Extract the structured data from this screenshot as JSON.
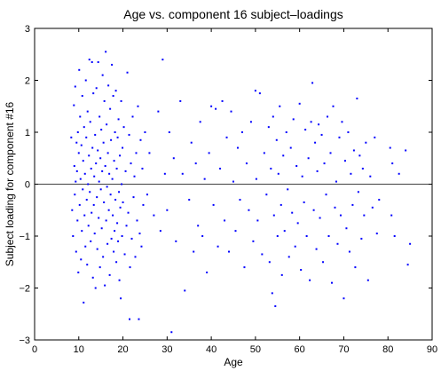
{
  "chart_data": {
    "type": "scatter",
    "title": "Age vs. component 16 subject–loadings",
    "xlabel": "Age",
    "ylabel": "Subject loading for component #16",
    "xlim": [
      0,
      90
    ],
    "ylim": [
      -3,
      3
    ],
    "xticks": [
      0,
      10,
      20,
      30,
      40,
      50,
      60,
      70,
      80,
      90
    ],
    "yticks": [
      -3,
      -2,
      -1,
      0,
      1,
      2,
      3
    ],
    "xtick_labels": [
      "0",
      "10",
      "20",
      "30",
      "40",
      "50",
      "60",
      "70",
      "80",
      "90"
    ],
    "ytick_labels": [
      "−3",
      "−2",
      "−1",
      "0",
      "1",
      "2",
      "3"
    ],
    "reference_line_y": 0,
    "grid": false,
    "colors": {
      "points": "#0000ff",
      "axes": "#000000",
      "reference_line": "#000000"
    },
    "points": [
      [
        8.3,
        0.9
      ],
      [
        8.5,
        -0.5
      ],
      [
        8.7,
        -1.0
      ],
      [
        8.9,
        1.52
      ],
      [
        9.0,
        0.35
      ],
      [
        9.1,
        -0.2
      ],
      [
        9.2,
        1.88
      ],
      [
        9.3,
        0.05
      ],
      [
        9.4,
        -1.3
      ],
      [
        9.5,
        0.8
      ],
      [
        9.6,
        0.25
      ],
      [
        9.7,
        -0.7
      ],
      [
        9.8,
        1.0
      ],
      [
        9.9,
        -1.7
      ],
      [
        10.0,
        0.6
      ],
      [
        10.1,
        2.2
      ],
      [
        10.2,
        -0.4
      ],
      [
        10.3,
        1.3
      ],
      [
        10.4,
        0.1
      ],
      [
        10.5,
        -1.45
      ],
      [
        10.6,
        0.75
      ],
      [
        10.7,
        -0.9
      ],
      [
        10.8,
        1.7
      ],
      [
        10.9,
        -0.1
      ],
      [
        11.0,
        0.45
      ],
      [
        11.1,
        -2.28
      ],
      [
        11.2,
        1.1
      ],
      [
        11.3,
        -0.6
      ],
      [
        11.4,
        0.2
      ],
      [
        11.5,
        -1.2
      ],
      [
        11.6,
        2.0
      ],
      [
        11.7,
        0.9
      ],
      [
        11.8,
        -0.3
      ],
      [
        11.9,
        -1.55
      ],
      [
        12.0,
        1.4
      ],
      [
        12.1,
        0.0
      ],
      [
        12.2,
        -0.8
      ],
      [
        12.3,
        0.55
      ],
      [
        12.4,
        2.4
      ],
      [
        12.5,
        -0.15
      ],
      [
        12.6,
        1.2
      ],
      [
        12.7,
        -1.1
      ],
      [
        12.8,
        0.3
      ],
      [
        12.9,
        -0.55
      ],
      [
        13.0,
        2.35
      ],
      [
        13.1,
        0.7
      ],
      [
        13.2,
        -1.8
      ],
      [
        13.3,
        1.75
      ],
      [
        13.4,
        -0.4
      ],
      [
        13.5,
        0.15
      ],
      [
        13.6,
        -0.95
      ],
      [
        13.7,
        0.95
      ],
      [
        13.8,
        -2.0
      ],
      [
        13.9,
        0.4
      ],
      [
        14.0,
        1.85
      ],
      [
        14.1,
        -0.25
      ],
      [
        14.2,
        -1.25
      ],
      [
        14.3,
        0.65
      ],
      [
        14.4,
        2.35
      ],
      [
        14.5,
        -0.65
      ],
      [
        14.6,
        0.05
      ],
      [
        14.7,
        1.3
      ],
      [
        14.8,
        -1.6
      ],
      [
        14.9,
        0.5
      ],
      [
        15.0,
        -0.1
      ],
      [
        15.1,
        1.05
      ],
      [
        15.2,
        -0.85
      ],
      [
        15.3,
        0.25
      ],
      [
        15.4,
        2.1
      ],
      [
        15.5,
        -1.4
      ],
      [
        15.6,
        0.8
      ],
      [
        15.7,
        -0.35
      ],
      [
        15.8,
        1.6
      ],
      [
        15.9,
        -1.95
      ],
      [
        16.0,
        0.35
      ],
      [
        16.1,
        2.55
      ],
      [
        16.2,
        -0.7
      ],
      [
        16.3,
        1.15
      ],
      [
        16.4,
        -0.05
      ],
      [
        16.5,
        -1.15
      ],
      [
        16.6,
        0.6
      ],
      [
        16.7,
        1.9
      ],
      [
        16.8,
        -0.5
      ],
      [
        16.9,
        0.2
      ],
      [
        17.0,
        -1.75
      ],
      [
        17.1,
        1.45
      ],
      [
        17.2,
        -0.2
      ],
      [
        17.3,
        0.85
      ],
      [
        17.4,
        -1.05
      ],
      [
        17.5,
        2.3
      ],
      [
        17.6,
        0.1
      ],
      [
        17.7,
        -0.6
      ],
      [
        17.8,
        1.7
      ],
      [
        17.9,
        -1.3
      ],
      [
        18.0,
        0.45
      ],
      [
        18.1,
        -0.9
      ],
      [
        18.2,
        1.0
      ],
      [
        18.3,
        -0.3
      ],
      [
        18.4,
        1.8
      ],
      [
        18.5,
        -1.5
      ],
      [
        18.6,
        0.3
      ],
      [
        18.7,
        -0.75
      ],
      [
        18.8,
        0.9
      ],
      [
        18.9,
        -1.1
      ],
      [
        19.0,
        1.25
      ],
      [
        19.1,
        -0.15
      ],
      [
        19.2,
        -1.85
      ],
      [
        19.3,
        0.55
      ],
      [
        19.4,
        -0.45
      ],
      [
        19.5,
        -2.2
      ],
      [
        19.6,
        1.6
      ],
      [
        19.7,
        0.0
      ],
      [
        19.8,
        -1.0
      ],
      [
        19.9,
        0.7
      ],
      [
        20.0,
        -0.35
      ],
      [
        20.2,
        1.1
      ],
      [
        20.4,
        -1.35
      ],
      [
        20.6,
        0.25
      ],
      [
        20.8,
        -0.8
      ],
      [
        21.0,
        2.15
      ],
      [
        21.2,
        -0.55
      ],
      [
        21.4,
        0.95
      ],
      [
        21.6,
        -1.6
      ],
      [
        21.8,
        0.4
      ],
      [
        22.0,
        -1.05
      ],
      [
        22.2,
        1.3
      ],
      [
        22.4,
        -0.25
      ],
      [
        22.6,
        0.15
      ],
      [
        22.8,
        -1.4
      ],
      [
        23.0,
        0.6
      ],
      [
        23.2,
        -0.7
      ],
      [
        23.4,
        1.5
      ],
      [
        23.6,
        -2.6
      ],
      [
        21.5,
        -2.6
      ],
      [
        23.8,
        -0.95
      ],
      [
        24.0,
        0.85
      ],
      [
        24.2,
        -1.2
      ],
      [
        24.4,
        0.3
      ],
      [
        24.6,
        -0.4
      ],
      [
        25.0,
        1.0
      ],
      [
        25.5,
        -0.2
      ],
      [
        26.0,
        0.6
      ],
      [
        27.0,
        -0.6
      ],
      [
        28.0,
        1.4
      ],
      [
        28.5,
        -0.9
      ],
      [
        29.0,
        2.4
      ],
      [
        29.5,
        0.2
      ],
      [
        30.0,
        -0.5
      ],
      [
        30.5,
        1.0
      ],
      [
        31.0,
        -2.85
      ],
      [
        31.5,
        0.5
      ],
      [
        32.0,
        -1.1
      ],
      [
        33.0,
        1.6
      ],
      [
        33.5,
        0.2
      ],
      [
        34.0,
        -2.05
      ],
      [
        35.0,
        -0.3
      ],
      [
        35.5,
        0.8
      ],
      [
        36.0,
        -1.3
      ],
      [
        36.5,
        0.4
      ],
      [
        37.0,
        -0.8
      ],
      [
        37.5,
        1.2
      ],
      [
        38.0,
        -1.0
      ],
      [
        38.5,
        0.1
      ],
      [
        39.0,
        -1.7
      ],
      [
        39.5,
        0.6
      ],
      [
        40.0,
        1.5
      ],
      [
        40.5,
        -0.4
      ],
      [
        41.0,
        1.45
      ],
      [
        41.5,
        -1.2
      ],
      [
        42.0,
        0.3
      ],
      [
        42.5,
        1.6
      ],
      [
        43.0,
        -0.7
      ],
      [
        43.5,
        0.9
      ],
      [
        44.0,
        -1.3
      ],
      [
        44.5,
        1.4
      ],
      [
        45.0,
        0.05
      ],
      [
        45.5,
        -0.9
      ],
      [
        46.0,
        0.7
      ],
      [
        46.5,
        -0.3
      ],
      [
        47.0,
        1.0
      ],
      [
        47.5,
        -1.6
      ],
      [
        48.0,
        0.4
      ],
      [
        48.5,
        -0.5
      ],
      [
        49.0,
        1.2
      ],
      [
        49.5,
        -1.1
      ],
      [
        50.0,
        1.8
      ],
      [
        50.2,
        0.1
      ],
      [
        50.5,
        -0.7
      ],
      [
        51.0,
        1.75
      ],
      [
        51.5,
        -1.35
      ],
      [
        52.0,
        0.6
      ],
      [
        52.5,
        -0.2
      ],
      [
        53.0,
        1.1
      ],
      [
        53.2,
        -1.5
      ],
      [
        53.5,
        0.3
      ],
      [
        53.8,
        -2.1
      ],
      [
        54.0,
        1.3
      ],
      [
        54.2,
        -0.6
      ],
      [
        54.5,
        -2.35
      ],
      [
        54.8,
        0.85
      ],
      [
        55.0,
        -1.0
      ],
      [
        55.2,
        0.2
      ],
      [
        55.5,
        1.5
      ],
      [
        55.8,
        -0.4
      ],
      [
        56.0,
        -1.75
      ],
      [
        56.3,
        0.55
      ],
      [
        56.6,
        -0.9
      ],
      [
        57.0,
        1.0
      ],
      [
        57.3,
        -0.1
      ],
      [
        57.6,
        -1.4
      ],
      [
        58.0,
        0.7
      ],
      [
        58.3,
        -0.55
      ],
      [
        58.6,
        1.25
      ],
      [
        59.0,
        -1.2
      ],
      [
        59.3,
        0.35
      ],
      [
        59.6,
        -0.75
      ],
      [
        60.0,
        1.55
      ],
      [
        60.3,
        -1.65
      ],
      [
        60.6,
        0.15
      ],
      [
        61.0,
        -0.35
      ],
      [
        61.3,
        1.05
      ],
      [
        61.6,
        -1.0
      ],
      [
        62.0,
        0.5
      ],
      [
        62.3,
        -1.85
      ],
      [
        62.6,
        1.2
      ],
      [
        62.9,
        1.95
      ],
      [
        63.2,
        -0.5
      ],
      [
        63.5,
        0.8
      ],
      [
        63.8,
        -1.25
      ],
      [
        64.0,
        0.25
      ],
      [
        64.3,
        1.15
      ],
      [
        64.6,
        -0.65
      ],
      [
        65.0,
        0.95
      ],
      [
        65.3,
        -1.5
      ],
      [
        65.6,
        0.4
      ],
      [
        66.0,
        -0.2
      ],
      [
        66.3,
        1.3
      ],
      [
        66.6,
        -1.0
      ],
      [
        67.0,
        0.6
      ],
      [
        67.3,
        -1.9
      ],
      [
        67.6,
        1.5
      ],
      [
        68.0,
        -0.45
      ],
      [
        68.3,
        0.05
      ],
      [
        68.6,
        -1.15
      ],
      [
        69.0,
        0.9
      ],
      [
        69.3,
        -0.6
      ],
      [
        69.6,
        1.2
      ],
      [
        70.0,
        -2.2
      ],
      [
        70.3,
        0.45
      ],
      [
        70.6,
        -0.85
      ],
      [
        71.0,
        1.0
      ],
      [
        71.3,
        -1.3
      ],
      [
        71.6,
        0.2
      ],
      [
        72.0,
        -0.4
      ],
      [
        72.3,
        0.65
      ],
      [
        72.6,
        -1.6
      ],
      [
        73.0,
        1.65
      ],
      [
        73.3,
        -0.15
      ],
      [
        73.6,
        0.55
      ],
      [
        74.0,
        -1.05
      ],
      [
        74.3,
        0.3
      ],
      [
        74.6,
        -0.6
      ],
      [
        75.0,
        0.8
      ],
      [
        75.5,
        -1.85
      ],
      [
        76.0,
        0.15
      ],
      [
        76.5,
        -0.45
      ],
      [
        77.0,
        0.9
      ],
      [
        77.5,
        -0.95
      ],
      [
        78.0,
        -0.3
      ],
      [
        80.5,
        0.7
      ],
      [
        80.8,
        -0.6
      ],
      [
        81.0,
        0.4
      ],
      [
        81.5,
        -1.0
      ],
      [
        82.5,
        0.2
      ],
      [
        84.0,
        0.65
      ],
      [
        84.5,
        -1.55
      ],
      [
        85.0,
        -1.15
      ]
    ]
  }
}
